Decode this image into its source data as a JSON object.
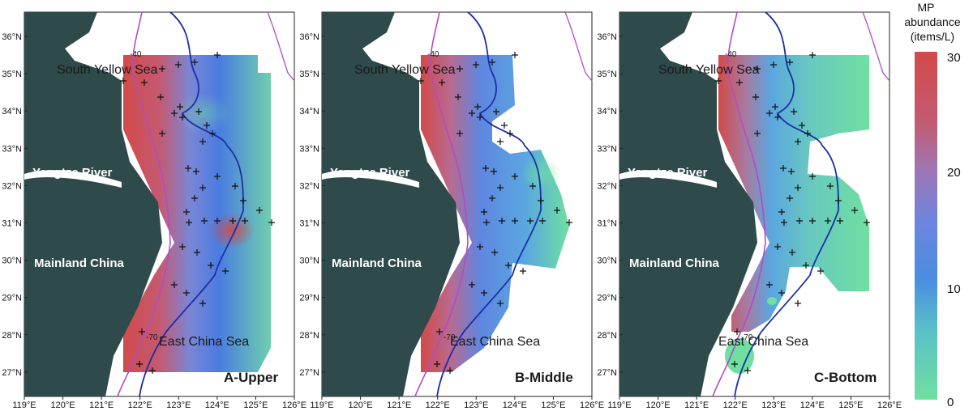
{
  "legend": {
    "title_line1": "MP",
    "title_line2": "abundance",
    "title_line3": "(items/L)",
    "ticks": [
      "30",
      "20",
      "10",
      "0"
    ],
    "min": 0,
    "max": 30,
    "colors": [
      "#6fe0a0",
      "#5aa6e0",
      "#4a7ce0",
      "#7a86d6",
      "#c45a72",
      "#d24a4a"
    ]
  },
  "map_common": {
    "lon_ticks": [
      "119°E",
      "120°E",
      "121°E",
      "122°E",
      "123°E",
      "124°E",
      "125°E",
      "126°E"
    ],
    "lat_ticks": [
      "36°N",
      "35°N",
      "34°N",
      "33°N",
      "32°N",
      "31°N",
      "30°N",
      "29°N",
      "28°N",
      "27°N"
    ],
    "places": {
      "south_yellow_sea": "South Yellow Sea",
      "yangtze_river": "Yangtze River",
      "mainland_china": "Mainland China",
      "east_china_sea": "East China Sea"
    },
    "isobaths": {
      "a": "-40",
      "b": "-70"
    },
    "colors": {
      "land": "#2f4a4a",
      "isobath_40": "#b04cc4",
      "isobath_70": "#1a2fa8"
    }
  },
  "panels": [
    {
      "label": "A-Upper"
    },
    {
      "label": "B-Middle"
    },
    {
      "label": "C-Bottom"
    }
  ]
}
